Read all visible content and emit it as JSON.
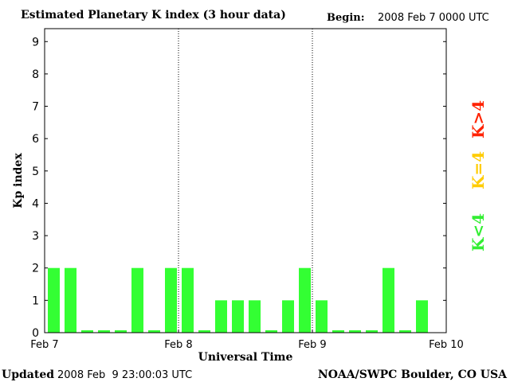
{
  "chart_data": {
    "type": "bar",
    "title": "Estimated Planetary K index (3 hour data)",
    "begin_label": "Begin:",
    "begin_value": "2008 Feb 7 0000 UTC",
    "xlabel": "Universal Time",
    "ylabel": "Kp index",
    "ylim": [
      0,
      9.4
    ],
    "y_ticks": [
      "0",
      "1",
      "2",
      "3",
      "4",
      "5",
      "6",
      "7",
      "8",
      "9"
    ],
    "x_ticks": [
      "Feb 7",
      "Feb 8",
      "Feb 9",
      "Feb 10"
    ],
    "grid": "vertical dotted lines at day boundaries",
    "values": [
      2,
      2,
      0,
      0,
      0,
      2,
      0,
      2,
      2,
      0,
      1,
      1,
      1,
      0,
      1,
      2,
      1,
      0,
      0,
      0,
      2,
      0,
      1
    ],
    "bar_color": "#33ff33",
    "legend": [
      {
        "label": "K<4",
        "color": "#33ee33"
      },
      {
        "label": "K=4",
        "color": "#ffcc00"
      },
      {
        "label": "K>4",
        "color": "#ff2200"
      }
    ],
    "legend_position": "right"
  },
  "footer": {
    "updated_label": "Updated",
    "updated_value": "2008 Feb  9 23:00:03 UTC",
    "source": "NOAA/SWPC Boulder, CO USA"
  }
}
